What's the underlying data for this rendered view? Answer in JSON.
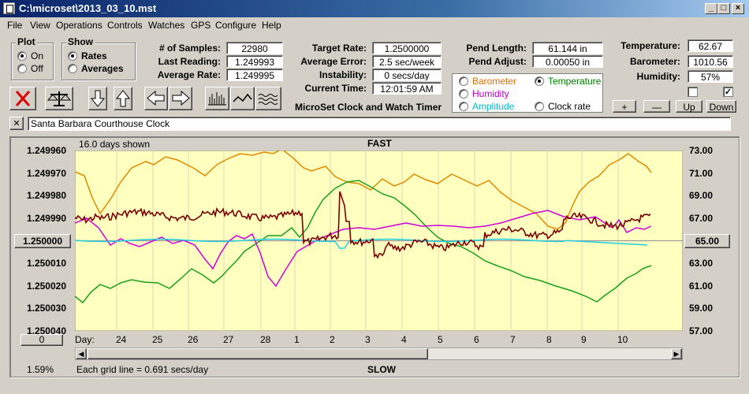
{
  "window": {
    "title": "C:\\microset\\2013_03_10.mst"
  },
  "menu": [
    "File",
    "View",
    "Operations",
    "Controls",
    "Watches",
    "GPS",
    "Configure",
    "Help"
  ],
  "plot_group": {
    "label": "Plot",
    "on": "On",
    "off": "Off",
    "selected": "On"
  },
  "show_group": {
    "label": "Show",
    "rates": "Rates",
    "averages": "Averages",
    "selected": "Rates"
  },
  "stats": {
    "samples_label": "# of Samples:",
    "samples": "22980",
    "last_reading_label": "Last Reading:",
    "last_reading": "1.249993",
    "average_rate_label": "Average Rate:",
    "average_rate": "1.249995",
    "target_rate_label": "Target Rate:",
    "target_rate": "1.2500000",
    "average_error_label": "Average Error:",
    "average_error": "2.5 sec/week",
    "instability_label": "Instability:",
    "instability": "0 secs/day",
    "current_time_label": "Current Time:",
    "current_time": "12:01:59 AM",
    "pend_length_label": "Pend Length:",
    "pend_length": "61.144 in",
    "pend_adjust_label": "Pend Adjust:",
    "pend_adjust": "0.00050 in",
    "temperature_label": "Temperature:",
    "temperature": "62.67",
    "barometer_label": "Barometer:",
    "barometer": "1010.56",
    "humidity_label": "Humidity:",
    "humidity": "57%"
  },
  "app_label": "MicroSet Clock and Watch Timer",
  "overlay_options": {
    "barometer": "Barometer",
    "temperature": "Temperature",
    "humidity": "Humidity",
    "amplitude": "Amplitude",
    "clock_rate": "Clock rate",
    "selected": "Temperature"
  },
  "overlay_checkboxes": {
    "left_checked": false,
    "right_checked": true
  },
  "scale_buttons": {
    "plus": "+",
    "minus": "—",
    "up": "Up",
    "down": "Down"
  },
  "description": "Santa Barbara Courthouse Clock",
  "close_symbol": "✕",
  "plot": {
    "days_shown": "16.0 days shown",
    "fast_label": "FAST",
    "slow_label": "SLOW",
    "day_label": "Day:",
    "grid_note": "Each grid line = 0.691 secs/day",
    "percent": "1.59%",
    "center_left_btn": "1.250000",
    "center_right_btn": "65.00",
    "bottom_left_btn": "0",
    "y_left_ticks": [
      "1.249960",
      "1.249970",
      "1.249980",
      "1.249990",
      "1.250000",
      "1.250010",
      "1.250020",
      "1.250030",
      "1.250040"
    ],
    "y_right_ticks": [
      "73.00",
      "71.00",
      "69.00",
      "67.00",
      "65.00",
      "63.00",
      "61.00",
      "59.00",
      "57.00"
    ],
    "day_ticks": [
      "24",
      "25",
      "26",
      "27",
      "28",
      "1",
      "2",
      "3",
      "4",
      "5",
      "6",
      "7",
      "8",
      "9",
      "10"
    ],
    "colors": {
      "background": "#ffffc0",
      "rate": "#7a0000",
      "temperature": "#e08a00",
      "barometer_green": "#1aa01a",
      "humidity": "#d000d8",
      "amplitude": "#20d0e0"
    }
  }
}
